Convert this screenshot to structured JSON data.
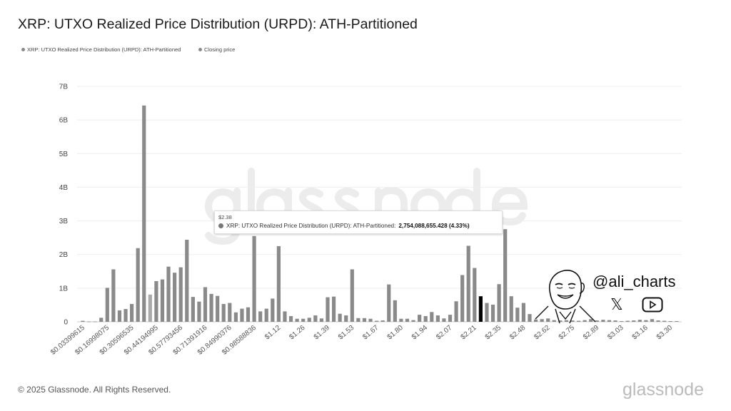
{
  "title": "XRP: UTXO Realized Price Distribution (URPD): ATH-Partitioned",
  "legend": [
    {
      "label": "XRP: UTXO Realized Price Distribution (URPD): ATH-Partitioned",
      "color": "#8a8a8a"
    },
    {
      "label": "Closing price",
      "color": "#8a8a8a"
    }
  ],
  "watermark": "glassnode",
  "tooltip": {
    "price": "$2.38",
    "series": "XRP: UTXO Realized Price Distribution (URPD): ATH-Partitioned:",
    "value": "2,754,088,655.428 (4.33%)"
  },
  "footer": "© 2025 Glassnode. All Rights Reserved.",
  "logo": "glassnode",
  "author": {
    "handle": "@ali_charts",
    "icons": [
      "x-icon",
      "youtube-icon"
    ]
  },
  "chart_data": {
    "type": "bar",
    "title": "XRP: UTXO Realized Price Distribution (URPD): ATH-Partitioned",
    "xlabel": "",
    "ylabel": "",
    "ylim": [
      0,
      7000000000
    ],
    "yticks": [
      "0",
      "1B",
      "2B",
      "3B",
      "4B",
      "5B",
      "6B",
      "7B"
    ],
    "grid": true,
    "legend_position": "top-left",
    "bar_color": "#8a8a8a",
    "closing_price_color": "#000000",
    "closing_price_bucket": 66,
    "hover_bucket": 70,
    "xticks": [
      "$0.03399615",
      "$0.16998075",
      "$0.30596535",
      "$0.44194995",
      "$0.57793456",
      "$0.71391916",
      "$0.84990376",
      "$0.98588836",
      "$1.12",
      "$1.26",
      "$1.39",
      "$1.53",
      "$1.67",
      "$1.80",
      "$1.94",
      "$2.07",
      "$2.21",
      "$2.35",
      "$2.48",
      "$2.62",
      "$2.75",
      "$2.89",
      "$3.03",
      "$3.16",
      "$3.30"
    ],
    "values_billions": [
      0.03,
      0.01,
      0.01,
      0.12,
      1.01,
      1.56,
      0.34,
      0.38,
      0.53,
      2.19,
      6.43,
      0.81,
      1.21,
      1.26,
      1.64,
      1.46,
      1.62,
      2.44,
      0.74,
      0.6,
      1.03,
      0.83,
      0.77,
      0.53,
      0.56,
      0.28,
      0.39,
      0.43,
      2.55,
      0.31,
      0.39,
      0.69,
      2.25,
      0.31,
      0.17,
      0.09,
      0.09,
      0.12,
      0.19,
      0.1,
      0.73,
      0.75,
      0.24,
      0.19,
      1.56,
      0.11,
      0.11,
      0.09,
      0.03,
      0.04,
      1.11,
      0.64,
      0.09,
      0.09,
      0.05,
      0.21,
      0.17,
      0.29,
      0.19,
      0.1,
      0.21,
      0.61,
      1.39,
      2.26,
      1.6,
      0.76,
      0.56,
      0.51,
      1.12,
      2.754,
      0.76,
      0.42,
      0.56,
      0.23,
      0.07,
      0.08,
      0.1,
      0.05,
      0.04,
      0.05,
      0.04,
      0.03,
      0.05,
      0.08,
      0.04,
      0.06,
      0.05,
      0.04,
      0.02,
      0.03,
      0.04,
      0.06,
      0.05,
      0.08,
      0.04,
      0.03,
      0.02,
      0.02
    ]
  }
}
